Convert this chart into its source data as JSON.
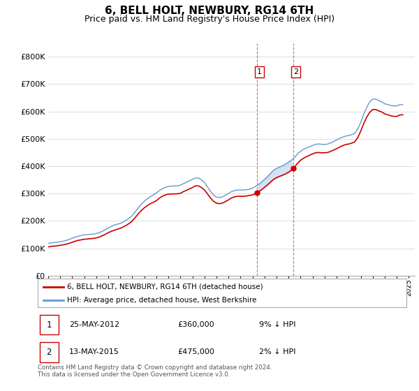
{
  "title": "6, BELL HOLT, NEWBURY, RG14 6TH",
  "subtitle": "Price paid vs. HM Land Registry's House Price Index (HPI)",
  "title_fontsize": 11,
  "subtitle_fontsize": 9,
  "ylabel_ticks": [
    "£0",
    "£100K",
    "£200K",
    "£300K",
    "£400K",
    "£500K",
    "£600K",
    "£700K",
    "£800K"
  ],
  "ytick_values": [
    0,
    100000,
    200000,
    300000,
    400000,
    500000,
    600000,
    700000,
    800000
  ],
  "ylim": [
    0,
    850000
  ],
  "xlim_start": 1995.0,
  "xlim_end": 2025.5,
  "legend_label_red": "6, BELL HOLT, NEWBURY, RG14 6TH (detached house)",
  "legend_label_blue": "HPI: Average price, detached house, West Berkshire",
  "transaction1_date": "25-MAY-2012",
  "transaction1_price": "£360,000",
  "transaction1_hpi": "9% ↓ HPI",
  "transaction1_year": 2012.38,
  "transaction1_price_val": 360000,
  "transaction2_date": "13-MAY-2015",
  "transaction2_price": "£475,000",
  "transaction2_hpi": "2% ↓ HPI",
  "transaction2_year": 2015.38,
  "transaction2_price_val": 475000,
  "footer": "Contains HM Land Registry data © Crown copyright and database right 2024.\nThis data is licensed under the Open Government Licence v3.0.",
  "hpi_x": [
    1995,
    1995.25,
    1995.5,
    1995.75,
    1996,
    1996.25,
    1996.5,
    1996.75,
    1997,
    1997.25,
    1997.5,
    1997.75,
    1998,
    1998.25,
    1998.5,
    1998.75,
    1999,
    1999.25,
    1999.5,
    1999.75,
    2000,
    2000.25,
    2000.5,
    2000.75,
    2001,
    2001.25,
    2001.5,
    2001.75,
    2002,
    2002.25,
    2002.5,
    2002.75,
    2003,
    2003.25,
    2003.5,
    2003.75,
    2004,
    2004.25,
    2004.5,
    2004.75,
    2005,
    2005.25,
    2005.5,
    2005.75,
    2006,
    2006.25,
    2006.5,
    2006.75,
    2007,
    2007.25,
    2007.5,
    2007.75,
    2008,
    2008.25,
    2008.5,
    2008.75,
    2009,
    2009.25,
    2009.5,
    2009.75,
    2010,
    2010.25,
    2010.5,
    2010.75,
    2011,
    2011.25,
    2011.5,
    2011.75,
    2012,
    2012.25,
    2012.5,
    2012.75,
    2013,
    2013.25,
    2013.5,
    2013.75,
    2014,
    2014.25,
    2014.5,
    2014.75,
    2015,
    2015.25,
    2015.5,
    2015.75,
    2016,
    2016.25,
    2016.5,
    2016.75,
    2017,
    2017.25,
    2017.5,
    2017.75,
    2018,
    2018.25,
    2018.5,
    2018.75,
    2019,
    2019.25,
    2019.5,
    2019.75,
    2020,
    2020.25,
    2020.5,
    2020.75,
    2021,
    2021.25,
    2021.5,
    2021.75,
    2022,
    2022.25,
    2022.5,
    2022.75,
    2023,
    2023.25,
    2023.5,
    2023.75,
    2024,
    2024.25,
    2024.5
  ],
  "hpi_y": [
    118000,
    120000,
    121000,
    122000,
    124000,
    126000,
    129000,
    132000,
    137000,
    141000,
    144000,
    147000,
    149000,
    150000,
    151000,
    152000,
    154000,
    157000,
    162000,
    168000,
    174000,
    180000,
    185000,
    188000,
    191000,
    196000,
    203000,
    210000,
    220000,
    234000,
    248000,
    261000,
    272000,
    281000,
    289000,
    295000,
    302000,
    311000,
    318000,
    323000,
    326000,
    327000,
    328000,
    328000,
    331000,
    336000,
    341000,
    347000,
    352000,
    357000,
    357000,
    350000,
    340000,
    325000,
    308000,
    295000,
    287000,
    285000,
    288000,
    294000,
    300000,
    307000,
    311000,
    313000,
    313000,
    313000,
    314000,
    316000,
    320000,
    326000,
    333000,
    342000,
    352000,
    362000,
    374000,
    385000,
    392000,
    397000,
    402000,
    408000,
    415000,
    422000,
    432000,
    445000,
    455000,
    462000,
    467000,
    471000,
    476000,
    480000,
    481000,
    480000,
    479000,
    481000,
    485000,
    490000,
    496000,
    502000,
    506000,
    510000,
    512000,
    515000,
    520000,
    535000,
    560000,
    590000,
    615000,
    635000,
    645000,
    645000,
    640000,
    635000,
    628000,
    625000,
    622000,
    620000,
    620000,
    625000,
    625000
  ],
  "red_x": [
    1995,
    1995.25,
    1995.5,
    1995.75,
    1996,
    1996.25,
    1996.5,
    1996.75,
    1997,
    1997.25,
    1997.5,
    1997.75,
    1998,
    1998.25,
    1998.5,
    1998.75,
    1999,
    1999.25,
    1999.5,
    1999.75,
    2000,
    2000.25,
    2000.5,
    2000.75,
    2001,
    2001.25,
    2001.5,
    2001.75,
    2002,
    2002.25,
    2002.5,
    2002.75,
    2003,
    2003.25,
    2003.5,
    2003.75,
    2004,
    2004.25,
    2004.5,
    2004.75,
    2005,
    2005.25,
    2005.5,
    2005.75,
    2006,
    2006.25,
    2006.5,
    2006.75,
    2007,
    2007.25,
    2007.5,
    2007.75,
    2008,
    2008.25,
    2008.5,
    2008.75,
    2009,
    2009.25,
    2009.5,
    2009.75,
    2010,
    2010.25,
    2010.5,
    2010.75,
    2011,
    2011.25,
    2011.5,
    2011.75,
    2012,
    2012.25,
    2012.5,
    2012.75,
    2013,
    2013.25,
    2013.5,
    2013.75,
    2014,
    2014.25,
    2014.5,
    2014.75,
    2015,
    2015.25,
    2015.5,
    2015.75,
    2016,
    2016.25,
    2016.5,
    2016.75,
    2017,
    2017.25,
    2017.5,
    2017.75,
    2018,
    2018.25,
    2018.5,
    2018.75,
    2019,
    2019.25,
    2019.5,
    2019.75,
    2020,
    2020.25,
    2020.5,
    2020.75,
    2021,
    2021.25,
    2021.5,
    2021.75,
    2022,
    2022.25,
    2022.5,
    2022.75,
    2023,
    2023.25,
    2023.5,
    2023.75,
    2024,
    2024.25,
    2024.5
  ],
  "red_y": [
    105000,
    107000,
    108000,
    109000,
    111000,
    113000,
    115000,
    118000,
    122000,
    126000,
    129000,
    131000,
    133000,
    134000,
    135000,
    136000,
    138000,
    141000,
    146000,
    151000,
    157000,
    162000,
    166000,
    170000,
    173000,
    178000,
    184000,
    191000,
    200000,
    213000,
    226000,
    238000,
    248000,
    256000,
    263000,
    268000,
    274000,
    283000,
    290000,
    295000,
    298000,
    298000,
    299000,
    299000,
    301000,
    307000,
    312000,
    317000,
    322000,
    328000,
    328000,
    322000,
    313000,
    299000,
    284000,
    272000,
    265000,
    263000,
    265000,
    271000,
    277000,
    284000,
    288000,
    290000,
    290000,
    290000,
    291000,
    293000,
    295000,
    300000,
    306000,
    314000,
    323000,
    332000,
    342000,
    352000,
    358000,
    363000,
    367000,
    372000,
    378000,
    386000,
    397000,
    411000,
    422000,
    429000,
    435000,
    440000,
    445000,
    449000,
    450000,
    449000,
    449000,
    450000,
    454000,
    459000,
    464000,
    470000,
    475000,
    479000,
    481000,
    484000,
    489000,
    504000,
    528000,
    556000,
    579000,
    597000,
    607000,
    607000,
    602000,
    598000,
    591000,
    588000,
    584000,
    582000,
    582000,
    587000,
    588000
  ],
  "highlight_fill_color": "#adc6e8",
  "red_color": "#cc0000",
  "blue_color": "#6699cc",
  "grid_color": "#dddddd"
}
